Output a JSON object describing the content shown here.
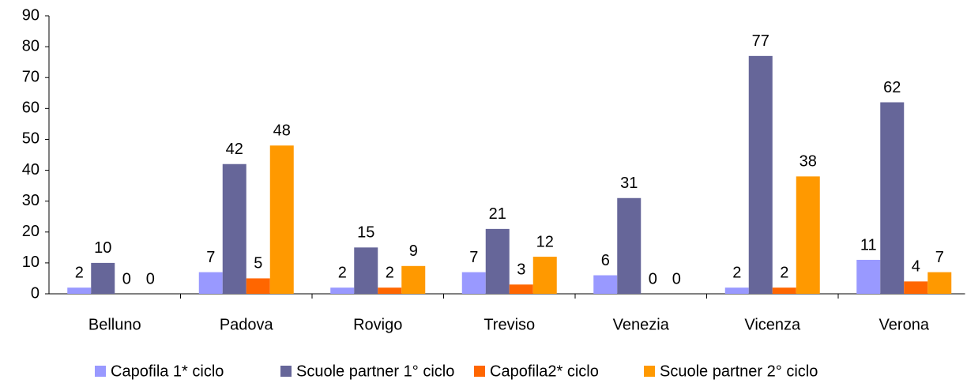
{
  "chart_data": {
    "type": "bar",
    "categories": [
      "Belluno",
      "Padova",
      "Rovigo",
      "Treviso",
      "Venezia",
      "Vicenza",
      "Verona"
    ],
    "series": [
      {
        "name": "Capofila 1* ciclo",
        "color": "#9999ff",
        "values": [
          2,
          7,
          2,
          7,
          6,
          2,
          11
        ]
      },
      {
        "name": "Scuole partner 1° ciclo",
        "color": "#666699",
        "values": [
          10,
          42,
          15,
          21,
          31,
          77,
          62
        ]
      },
      {
        "name": "Capofila2* ciclo",
        "color": "#ff6600",
        "values": [
          0,
          5,
          2,
          3,
          0,
          2,
          4
        ]
      },
      {
        "name": "Scuole partner 2° ciclo",
        "color": "#ff9900",
        "values": [
          0,
          48,
          9,
          12,
          0,
          38,
          7
        ]
      }
    ],
    "ylim": [
      0,
      90
    ],
    "yticks": [
      0,
      10,
      20,
      30,
      40,
      50,
      60,
      70,
      80,
      90
    ],
    "legend": "bottom"
  }
}
